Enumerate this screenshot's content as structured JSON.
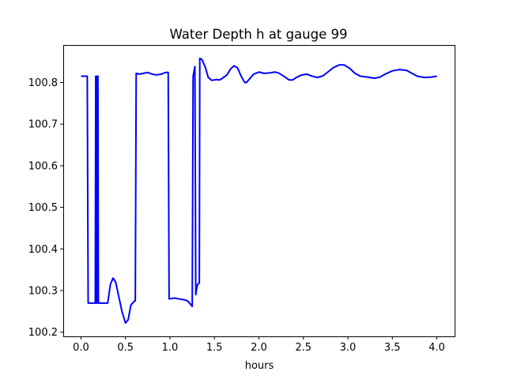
{
  "chart_data": {
    "type": "line",
    "title": "Water Depth h at gauge 99",
    "xlabel": "hours",
    "ylabel": "",
    "xlim": [
      -0.2,
      4.2
    ],
    "ylim": [
      100.19,
      100.89
    ],
    "xticks": [
      0.0,
      0.5,
      1.0,
      1.5,
      2.0,
      2.5,
      3.0,
      3.5,
      4.0
    ],
    "xtick_labels": [
      "0.0",
      "0.5",
      "1.0",
      "1.5",
      "2.0",
      "2.5",
      "3.0",
      "3.5",
      "4.0"
    ],
    "yticks": [
      100.2,
      100.3,
      100.4,
      100.5,
      100.6,
      100.7,
      100.8
    ],
    "ytick_labels": [
      "100.2",
      "100.3",
      "100.4",
      "100.5",
      "100.6",
      "100.7",
      "100.8"
    ],
    "grid": false,
    "series": [
      {
        "color": "#0000ff",
        "points": [
          [
            0.0,
            100.815
          ],
          [
            0.07,
            100.815
          ],
          [
            0.08,
            100.27
          ],
          [
            0.16,
            100.27
          ],
          [
            0.165,
            100.815
          ],
          [
            0.17,
            100.27
          ],
          [
            0.175,
            100.815
          ],
          [
            0.18,
            100.27
          ],
          [
            0.185,
            100.815
          ],
          [
            0.19,
            100.815
          ],
          [
            0.195,
            100.27
          ],
          [
            0.3,
            100.27
          ],
          [
            0.33,
            100.315
          ],
          [
            0.36,
            100.33
          ],
          [
            0.39,
            100.32
          ],
          [
            0.42,
            100.29
          ],
          [
            0.46,
            100.25
          ],
          [
            0.5,
            100.222
          ],
          [
            0.53,
            100.23
          ],
          [
            0.56,
            100.265
          ],
          [
            0.6,
            100.275
          ],
          [
            0.61,
            100.275
          ],
          [
            0.62,
            100.822
          ],
          [
            0.66,
            100.82
          ],
          [
            0.7,
            100.822
          ],
          [
            0.75,
            100.824
          ],
          [
            0.8,
            100.82
          ],
          [
            0.85,
            100.818
          ],
          [
            0.9,
            100.82
          ],
          [
            0.95,
            100.824
          ],
          [
            0.98,
            100.824
          ],
          [
            0.99,
            100.28
          ],
          [
            1.05,
            100.282
          ],
          [
            1.1,
            100.28
          ],
          [
            1.16,
            100.278
          ],
          [
            1.2,
            100.275
          ],
          [
            1.25,
            100.262
          ],
          [
            1.26,
            100.815
          ],
          [
            1.28,
            100.838
          ],
          [
            1.29,
            100.29
          ],
          [
            1.3,
            100.305
          ],
          [
            1.31,
            100.315
          ],
          [
            1.33,
            100.318
          ],
          [
            1.335,
            100.858
          ],
          [
            1.36,
            100.855
          ],
          [
            1.4,
            100.835
          ],
          [
            1.43,
            100.812
          ],
          [
            1.47,
            100.805
          ],
          [
            1.52,
            100.807
          ],
          [
            1.56,
            100.806
          ],
          [
            1.6,
            100.812
          ],
          [
            1.64,
            100.818
          ],
          [
            1.68,
            100.832
          ],
          [
            1.72,
            100.84
          ],
          [
            1.76,
            100.835
          ],
          [
            1.8,
            100.815
          ],
          [
            1.84,
            100.8
          ],
          [
            1.86,
            100.8
          ],
          [
            1.9,
            100.81
          ],
          [
            1.94,
            100.82
          ],
          [
            2.0,
            100.825
          ],
          [
            2.06,
            100.822
          ],
          [
            2.12,
            100.823
          ],
          [
            2.18,
            100.825
          ],
          [
            2.22,
            100.823
          ],
          [
            2.28,
            100.815
          ],
          [
            2.34,
            100.806
          ],
          [
            2.38,
            100.806
          ],
          [
            2.42,
            100.812
          ],
          [
            2.48,
            100.818
          ],
          [
            2.54,
            100.82
          ],
          [
            2.6,
            100.815
          ],
          [
            2.66,
            100.812
          ],
          [
            2.72,
            100.816
          ],
          [
            2.78,
            100.826
          ],
          [
            2.84,
            100.836
          ],
          [
            2.9,
            100.842
          ],
          [
            2.96,
            100.842
          ],
          [
            3.02,
            100.834
          ],
          [
            3.08,
            100.822
          ],
          [
            3.14,
            100.815
          ],
          [
            3.22,
            100.813
          ],
          [
            3.3,
            100.81
          ],
          [
            3.36,
            100.813
          ],
          [
            3.42,
            100.82
          ],
          [
            3.5,
            100.828
          ],
          [
            3.58,
            100.831
          ],
          [
            3.66,
            100.829
          ],
          [
            3.72,
            100.822
          ],
          [
            3.78,
            100.815
          ],
          [
            3.86,
            100.812
          ],
          [
            3.94,
            100.813
          ],
          [
            4.0,
            100.815
          ]
        ]
      }
    ]
  }
}
